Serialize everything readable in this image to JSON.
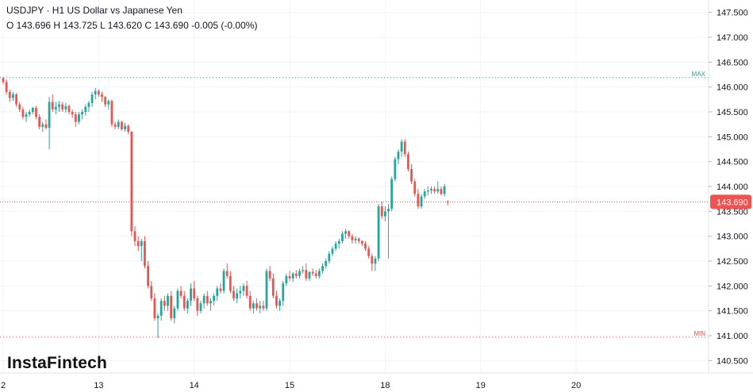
{
  "header": {
    "symbol_line": "USDJPY · H1 US Dollar vs Japanese Yen",
    "ohlc_line": "O 143.696 H 143.725 L 143.620 C 143.690  -0.005 (-0.00%)"
  },
  "logo": "InstaFintech",
  "colors": {
    "up": "#26a69a",
    "down": "#ef5350",
    "grid": "#f0f3fa",
    "max_line": "#26a69a",
    "min_line": "#ef5350",
    "price_tag": "#ef5350"
  },
  "chart_data": {
    "type": "candlestick",
    "timeframe": "H1",
    "ylim": [
      140.25,
      147.75
    ],
    "xlim": [
      0,
      200
    ],
    "y_ticks": [
      "140.500",
      "141.000",
      "141.500",
      "142.000",
      "142.500",
      "143.000",
      "143.500",
      "144.000",
      "144.500",
      "145.000",
      "145.500",
      "146.000",
      "146.500",
      "147.000",
      "147.500"
    ],
    "x_ticks": [
      {
        "label": "2",
        "at": 0
      },
      {
        "label": "13",
        "at": 29
      },
      {
        "label": "14",
        "at": 58
      },
      {
        "label": "15",
        "at": 87
      },
      {
        "label": "18",
        "at": 116
      },
      {
        "label": "19",
        "at": 145
      },
      {
        "label": "20",
        "at": 174
      }
    ],
    "grid": true,
    "max_line": {
      "label": "MAX",
      "value": 146.19
    },
    "min_line": {
      "label": "MIN",
      "value": 140.97
    },
    "last_price": {
      "label": "143.690",
      "value": 143.69
    },
    "candles": [
      [
        146.18,
        146.2,
        146.05,
        146.1
      ],
      [
        146.1,
        146.15,
        145.85,
        145.9
      ],
      [
        145.9,
        145.95,
        145.7,
        145.78
      ],
      [
        145.78,
        145.9,
        145.72,
        145.85
      ],
      [
        145.85,
        145.88,
        145.6,
        145.65
      ],
      [
        145.65,
        145.7,
        145.5,
        145.55
      ],
      [
        145.55,
        145.6,
        145.35,
        145.4
      ],
      [
        145.4,
        145.5,
        145.3,
        145.45
      ],
      [
        145.45,
        145.55,
        145.4,
        145.5
      ],
      [
        145.5,
        145.6,
        145.45,
        145.58
      ],
      [
        145.58,
        145.62,
        145.35,
        145.4
      ],
      [
        145.4,
        145.45,
        145.15,
        145.2
      ],
      [
        145.2,
        145.3,
        145.1,
        145.25
      ],
      [
        145.25,
        145.35,
        145.15,
        145.18
      ],
      [
        145.18,
        145.8,
        144.75,
        145.7
      ],
      [
        145.7,
        145.85,
        145.5,
        145.55
      ],
      [
        145.55,
        145.7,
        145.45,
        145.6
      ],
      [
        145.6,
        145.72,
        145.5,
        145.65
      ],
      [
        145.65,
        145.7,
        145.5,
        145.55
      ],
      [
        145.55,
        145.68,
        145.48,
        145.62
      ],
      [
        145.62,
        145.65,
        145.45,
        145.5
      ],
      [
        145.5,
        145.55,
        145.38,
        145.45
      ],
      [
        145.45,
        145.5,
        145.2,
        145.3
      ],
      [
        145.3,
        145.5,
        145.25,
        145.45
      ],
      [
        145.45,
        145.55,
        145.35,
        145.5
      ],
      [
        145.5,
        145.65,
        145.42,
        145.6
      ],
      [
        145.6,
        145.72,
        145.5,
        145.68
      ],
      [
        145.68,
        145.9,
        145.6,
        145.85
      ],
      [
        145.85,
        145.98,
        145.75,
        145.92
      ],
      [
        145.92,
        145.95,
        145.8,
        145.85
      ],
      [
        145.85,
        145.9,
        145.7,
        145.8
      ],
      [
        145.8,
        145.82,
        145.6,
        145.65
      ],
      [
        145.65,
        145.75,
        145.55,
        145.72
      ],
      [
        145.72,
        145.75,
        145.2,
        145.25
      ],
      [
        145.25,
        145.3,
        145.15,
        145.2
      ],
      [
        145.2,
        145.35,
        145.15,
        145.3
      ],
      [
        145.3,
        145.32,
        145.12,
        145.15
      ],
      [
        145.15,
        145.28,
        145.1,
        145.22
      ],
      [
        145.22,
        145.25,
        145.05,
        145.1
      ],
      [
        145.1,
        145.12,
        143.0,
        143.1
      ],
      [
        143.1,
        143.2,
        142.8,
        142.9
      ],
      [
        142.9,
        143.0,
        142.7,
        142.8
      ],
      [
        142.8,
        142.95,
        142.5,
        142.9
      ],
      [
        142.9,
        143.0,
        142.35,
        142.4
      ],
      [
        142.4,
        142.5,
        141.95,
        142.0
      ],
      [
        142.0,
        142.1,
        141.7,
        141.75
      ],
      [
        141.75,
        141.85,
        141.3,
        141.35
      ],
      [
        141.35,
        141.45,
        140.95,
        141.4
      ],
      [
        141.4,
        141.75,
        141.3,
        141.7
      ],
      [
        141.7,
        141.8,
        141.5,
        141.6
      ],
      [
        141.6,
        141.85,
        141.5,
        141.8
      ],
      [
        141.8,
        141.9,
        141.3,
        141.35
      ],
      [
        141.35,
        141.6,
        141.25,
        141.55
      ],
      [
        141.55,
        141.95,
        141.5,
        141.9
      ],
      [
        141.9,
        142.0,
        141.75,
        141.8
      ],
      [
        141.8,
        141.9,
        141.5,
        141.55
      ],
      [
        141.55,
        141.75,
        141.45,
        141.7
      ],
      [
        141.7,
        142.05,
        141.6,
        141.95
      ],
      [
        141.95,
        142.1,
        141.7,
        141.75
      ],
      [
        141.75,
        141.8,
        141.4,
        141.5
      ],
      [
        141.5,
        141.7,
        141.45,
        141.65
      ],
      [
        141.65,
        141.85,
        141.55,
        141.8
      ],
      [
        141.8,
        141.9,
        141.6,
        141.65
      ],
      [
        141.65,
        141.75,
        141.5,
        141.7
      ],
      [
        141.7,
        141.85,
        141.6,
        141.8
      ],
      [
        141.8,
        142.0,
        141.7,
        141.95
      ],
      [
        141.95,
        142.05,
        141.85,
        141.9
      ],
      [
        141.9,
        142.35,
        141.85,
        142.3
      ],
      [
        142.3,
        142.45,
        142.15,
        142.2
      ],
      [
        142.2,
        142.3,
        141.85,
        141.9
      ],
      [
        141.9,
        142.0,
        141.7,
        141.75
      ],
      [
        141.75,
        141.95,
        141.65,
        141.85
      ],
      [
        141.85,
        142.0,
        141.75,
        141.9
      ],
      [
        141.9,
        142.05,
        141.8,
        142.0
      ],
      [
        142.0,
        142.1,
        141.75,
        141.8
      ],
      [
        141.8,
        141.9,
        141.5,
        141.55
      ],
      [
        141.55,
        141.7,
        141.45,
        141.65
      ],
      [
        141.65,
        141.75,
        141.5,
        141.55
      ],
      [
        141.55,
        141.7,
        141.45,
        141.6
      ],
      [
        141.6,
        141.7,
        141.5,
        141.55
      ],
      [
        141.55,
        142.35,
        141.5,
        142.3
      ],
      [
        142.3,
        142.4,
        142.1,
        142.15
      ],
      [
        142.15,
        142.25,
        141.75,
        141.8
      ],
      [
        141.8,
        141.9,
        141.55,
        141.6
      ],
      [
        141.6,
        141.75,
        141.5,
        141.7
      ],
      [
        141.7,
        142.1,
        141.6,
        142.05
      ],
      [
        142.05,
        142.25,
        142.0,
        142.2
      ],
      [
        142.2,
        142.3,
        142.1,
        142.15
      ],
      [
        142.15,
        142.28,
        142.08,
        142.25
      ],
      [
        142.25,
        142.32,
        142.15,
        142.2
      ],
      [
        142.2,
        142.35,
        142.15,
        142.3
      ],
      [
        142.3,
        142.4,
        142.25,
        142.32
      ],
      [
        142.32,
        142.45,
        142.1,
        142.15
      ],
      [
        142.15,
        142.3,
        142.1,
        142.28
      ],
      [
        142.28,
        142.35,
        142.2,
        142.25
      ],
      [
        142.25,
        142.32,
        142.15,
        142.2
      ],
      [
        142.2,
        142.35,
        142.15,
        142.3
      ],
      [
        142.3,
        142.45,
        142.25,
        142.4
      ],
      [
        142.4,
        142.55,
        142.35,
        142.5
      ],
      [
        142.5,
        142.7,
        142.45,
        142.65
      ],
      [
        142.65,
        142.8,
        142.6,
        142.75
      ],
      [
        142.75,
        142.9,
        142.7,
        142.85
      ],
      [
        142.85,
        142.95,
        142.75,
        142.9
      ],
      [
        142.9,
        143.1,
        142.85,
        143.05
      ],
      [
        143.05,
        143.15,
        142.95,
        143.1
      ],
      [
        143.1,
        143.12,
        142.95,
        143.0
      ],
      [
        143.0,
        143.05,
        142.85,
        142.92
      ],
      [
        142.92,
        143.0,
        142.85,
        142.95
      ],
      [
        142.95,
        142.98,
        142.85,
        142.9
      ],
      [
        142.9,
        142.92,
        142.8,
        142.85
      ],
      [
        142.85,
        142.9,
        142.7,
        142.75
      ],
      [
        142.75,
        142.8,
        142.55,
        142.6
      ],
      [
        142.6,
        142.65,
        142.3,
        142.45
      ],
      [
        142.45,
        142.6,
        142.3,
        142.55
      ],
      [
        142.55,
        143.65,
        142.5,
        143.6
      ],
      [
        143.6,
        143.7,
        143.35,
        143.4
      ],
      [
        143.4,
        143.6,
        143.3,
        143.5
      ],
      [
        143.5,
        143.65,
        142.55,
        143.55
      ],
      [
        143.55,
        144.2,
        143.5,
        144.15
      ],
      [
        144.15,
        144.6,
        144.1,
        144.55
      ],
      [
        144.55,
        144.75,
        144.45,
        144.7
      ],
      [
        144.7,
        144.95,
        144.6,
        144.9
      ],
      [
        144.9,
        144.95,
        144.6,
        144.65
      ],
      [
        144.65,
        144.7,
        144.3,
        144.35
      ],
      [
        144.35,
        144.45,
        144.05,
        144.1
      ],
      [
        144.1,
        144.15,
        143.8,
        143.85
      ],
      [
        143.85,
        143.95,
        143.55,
        143.6
      ],
      [
        143.6,
        143.85,
        143.55,
        143.8
      ],
      [
        143.8,
        143.95,
        143.75,
        143.9
      ],
      [
        143.9,
        144.0,
        143.82,
        143.92
      ],
      [
        143.92,
        144.0,
        143.85,
        143.95
      ],
      [
        143.95,
        144.0,
        143.85,
        143.9
      ],
      [
        143.9,
        144.1,
        143.85,
        143.95
      ],
      [
        143.95,
        144.0,
        143.82,
        143.85
      ],
      [
        143.85,
        144.05,
        143.8,
        144.0
      ],
      [
        143.696,
        143.725,
        143.62,
        143.69
      ]
    ]
  }
}
